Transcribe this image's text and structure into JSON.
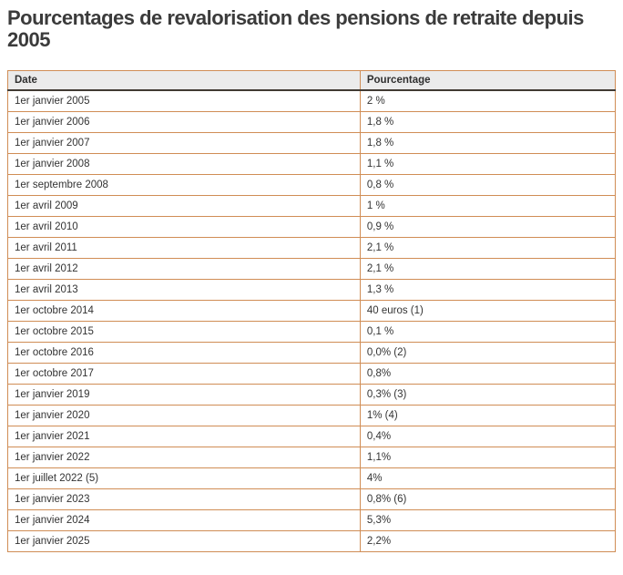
{
  "page": {
    "title": "Pourcentages de revalorisation des pensions de retraite depuis 2005"
  },
  "chart_data": {
    "type": "table",
    "title": "Pourcentages de revalorisation des pensions de retraite depuis 2005",
    "columns": [
      "Date",
      "Pourcentage"
    ],
    "rows": [
      [
        "1er janvier 2005",
        "2 %"
      ],
      [
        "1er janvier 2006",
        "1,8 %"
      ],
      [
        "1er janvier 2007",
        "1,8 %"
      ],
      [
        "1er janvier 2008",
        "1,1 %"
      ],
      [
        "1er septembre 2008",
        "0,8 %"
      ],
      [
        "1er avril 2009",
        "1 %"
      ],
      [
        "1er avril 2010",
        "0,9 %"
      ],
      [
        "1er avril 2011",
        "2,1 %"
      ],
      [
        "1er avril 2012",
        "2,1 %"
      ],
      [
        "1er avril 2013",
        "1,3 %"
      ],
      [
        "1er octobre 2014",
        "40 euros (1)"
      ],
      [
        "1er octobre 2015",
        "0,1 %"
      ],
      [
        "1er octobre 2016",
        "0,0% (2)"
      ],
      [
        "1er octobre 2017",
        "0,8%"
      ],
      [
        "1er janvier 2019",
        "0,3% (3)"
      ],
      [
        "1er janvier 2020",
        "1% (4)"
      ],
      [
        "1er janvier 2021",
        "0,4%"
      ],
      [
        "1er janvier 2022",
        "1,1%"
      ],
      [
        "1er juillet 2022 (5)",
        "4%"
      ],
      [
        "1er janvier 2023",
        "0,8% (6)"
      ],
      [
        "1er janvier 2024",
        "5,3%"
      ],
      [
        "1er janvier 2025",
        "2,2%"
      ]
    ]
  },
  "colors": {
    "table_border": "#d08d55",
    "header_background": "#ebebeb",
    "header_bottom_rule": "#413a33",
    "text": "#333333",
    "title_text": "#3b3b3b",
    "page_background": "#ffffff"
  }
}
